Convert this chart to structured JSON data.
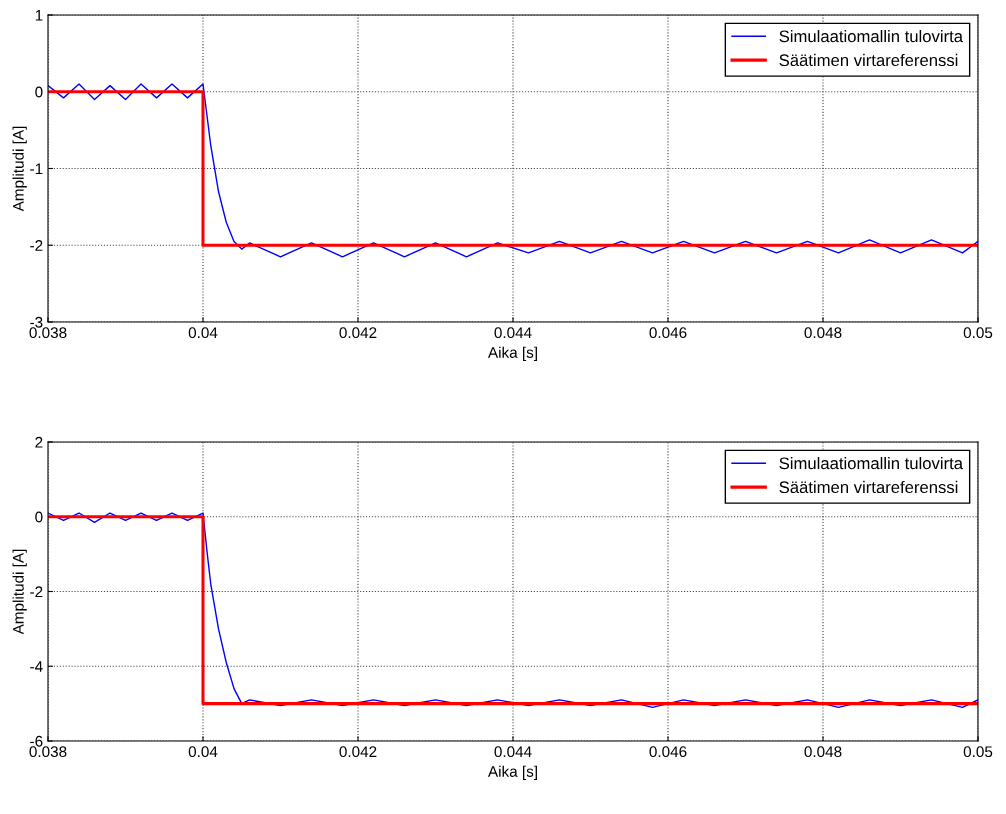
{
  "chart_data": [
    {
      "type": "line",
      "xlabel": "Aika [s]",
      "ylabel": "Amplitudi [A]",
      "xlim": [
        0.038,
        0.05
      ],
      "xticks": [
        0.038,
        0.04,
        0.042,
        0.044,
        0.046,
        0.048,
        0.05
      ],
      "ylim": [
        -3,
        1
      ],
      "yticks": [
        -3,
        -2,
        -1,
        0,
        1
      ],
      "grid": true,
      "legend": "top right",
      "line_style": "solid",
      "marker": "none",
      "series": [
        {
          "name": "Simulaatiomallin tulovirta",
          "color": "#0000ff",
          "x": [
            0.038,
            0.0382,
            0.0384,
            0.0386,
            0.0388,
            0.039,
            0.0392,
            0.0394,
            0.0396,
            0.0398,
            0.04,
            0.04005,
            0.0401,
            0.0402,
            0.0403,
            0.0404,
            0.0405,
            0.0406,
            0.041,
            0.0414,
            0.0418,
            0.0422,
            0.0426,
            0.043,
            0.0434,
            0.0438,
            0.0442,
            0.0446,
            0.045,
            0.0454,
            0.0458,
            0.0462,
            0.0466,
            0.047,
            0.0474,
            0.0478,
            0.0482,
            0.0486,
            0.049,
            0.0494,
            0.0498,
            0.05
          ],
          "values": [
            0.08,
            -0.08,
            0.1,
            -0.1,
            0.08,
            -0.1,
            0.1,
            -0.08,
            0.1,
            -0.08,
            0.1,
            -0.3,
            -0.7,
            -1.3,
            -1.7,
            -1.95,
            -2.05,
            -1.97,
            -2.15,
            -1.97,
            -2.15,
            -1.97,
            -2.15,
            -1.97,
            -2.15,
            -1.97,
            -2.1,
            -1.95,
            -2.1,
            -1.95,
            -2.1,
            -1.95,
            -2.1,
            -1.95,
            -2.1,
            -1.95,
            -2.1,
            -1.93,
            -2.1,
            -1.93,
            -2.1,
            -1.95
          ]
        },
        {
          "name": "Säätimen virtareferenssi",
          "color": "#ff0000",
          "x": [
            0.038,
            0.04,
            0.04,
            0.05
          ],
          "values": [
            0,
            0,
            -2,
            -2
          ]
        }
      ]
    },
    {
      "type": "line",
      "xlabel": "Aika [s]",
      "ylabel": "Amplitudi [A]",
      "xlim": [
        0.038,
        0.05
      ],
      "xticks": [
        0.038,
        0.04,
        0.042,
        0.044,
        0.046,
        0.048,
        0.05
      ],
      "ylim": [
        -6,
        2
      ],
      "yticks": [
        -6,
        -4,
        -2,
        0,
        2
      ],
      "grid": true,
      "legend": "top right",
      "line_style": "solid",
      "marker": "none",
      "series": [
        {
          "name": "Simulaatiomallin tulovirta",
          "color": "#0000ff",
          "x": [
            0.038,
            0.0382,
            0.0384,
            0.0386,
            0.0388,
            0.039,
            0.0392,
            0.0394,
            0.0396,
            0.0398,
            0.04,
            0.04005,
            0.0401,
            0.0402,
            0.0403,
            0.0404,
            0.0405,
            0.0406,
            0.041,
            0.0414,
            0.0418,
            0.0422,
            0.0426,
            0.043,
            0.0434,
            0.0438,
            0.0442,
            0.0446,
            0.045,
            0.0454,
            0.0458,
            0.0462,
            0.0466,
            0.047,
            0.0474,
            0.0478,
            0.0482,
            0.0486,
            0.049,
            0.0494,
            0.0498,
            0.05
          ],
          "values": [
            0.1,
            -0.1,
            0.1,
            -0.15,
            0.1,
            -0.1,
            0.1,
            -0.1,
            0.1,
            -0.1,
            0.1,
            -0.9,
            -1.8,
            -3.0,
            -3.9,
            -4.6,
            -5.0,
            -4.9,
            -5.05,
            -4.9,
            -5.05,
            -4.9,
            -5.05,
            -4.9,
            -5.05,
            -4.9,
            -5.05,
            -4.9,
            -5.05,
            -4.9,
            -5.1,
            -4.9,
            -5.05,
            -4.9,
            -5.05,
            -4.9,
            -5.1,
            -4.9,
            -5.05,
            -4.9,
            -5.1,
            -4.9
          ]
        },
        {
          "name": "Säätimen virtareferenssi",
          "color": "#ff0000",
          "x": [
            0.038,
            0.04,
            0.04,
            0.05
          ],
          "values": [
            0,
            0,
            -5,
            -5
          ]
        }
      ]
    }
  ]
}
